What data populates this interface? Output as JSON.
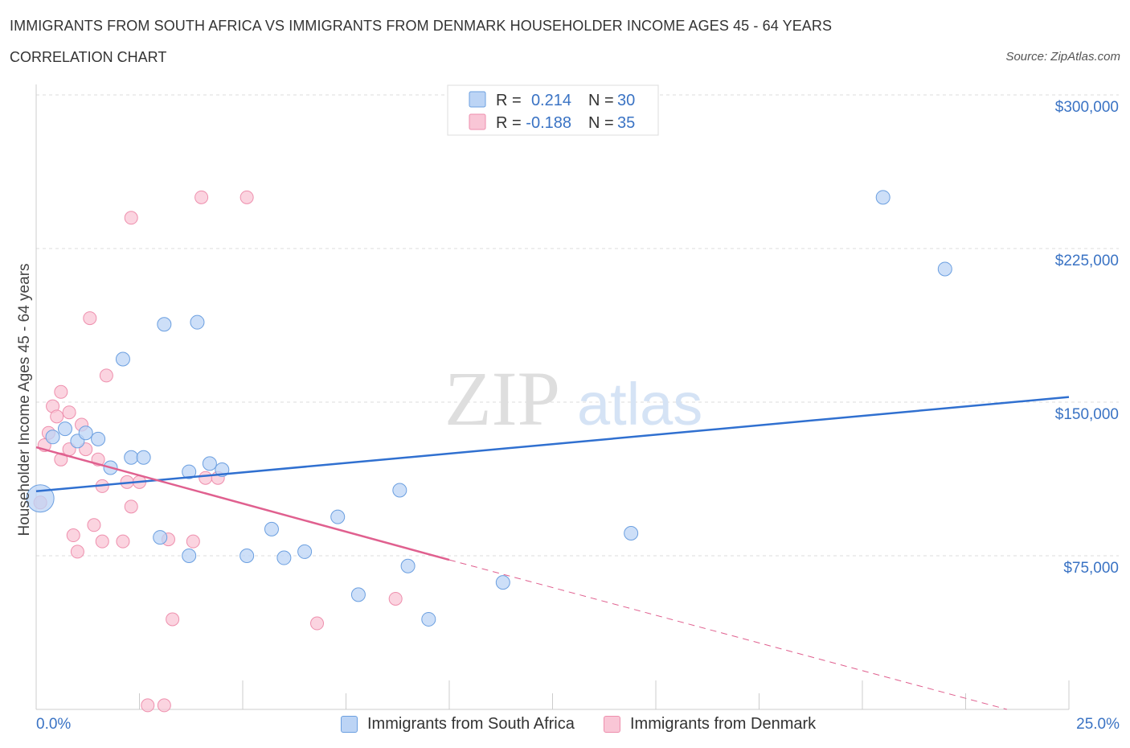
{
  "title": "IMMIGRANTS FROM SOUTH AFRICA VS IMMIGRANTS FROM DENMARK HOUSEHOLDER INCOME AGES 45 - 64 YEARS",
  "subtitle": "CORRELATION CHART",
  "source": "Source: ZipAtlas.com",
  "watermark": {
    "zip": "ZIP",
    "atlas": "atlas"
  },
  "legend_top": [
    {
      "r_label": "R =",
      "r_value": "0.214",
      "n_label": "N =",
      "n_value": "30"
    },
    {
      "r_label": "R =",
      "r_value": "-0.188",
      "n_label": "N =",
      "n_value": "35"
    }
  ],
  "legend_bottom": [
    {
      "label": "Immigrants from South Africa"
    },
    {
      "label": "Immigrants from Denmark"
    }
  ],
  "colors": {
    "blue_fill": "#bcd4f5",
    "blue_stroke": "#6b9fe0",
    "blue_line": "#3070d0",
    "pink_fill": "#f9c6d6",
    "pink_stroke": "#ee8fad",
    "pink_line": "#e0608f",
    "tick_text": "#3a73c4",
    "grid": "#dddddd"
  },
  "chart_data": {
    "type": "scatter",
    "title": "IMMIGRANTS FROM SOUTH AFRICA VS IMMIGRANTS FROM DENMARK HOUSEHOLDER INCOME AGES 45 - 64 YEARS",
    "xlabel": "",
    "ylabel": "Householder Income Ages 45 - 64 years",
    "xlim": [
      0,
      25
    ],
    "ylim": [
      0,
      300000
    ],
    "x_tick_labels": [
      "0.0%",
      "25.0%"
    ],
    "y_ticks": [
      75000,
      150000,
      225000,
      300000
    ],
    "y_tick_labels": [
      "$75,000",
      "$150,000",
      "$225,000",
      "$300,000"
    ],
    "grid": true,
    "series": [
      {
        "name": "Immigrants from South Africa",
        "r": 0.214,
        "n": 30,
        "trend": {
          "x0": 0,
          "y0": 106500,
          "x1": 25,
          "y1": 152500
        },
        "points": [
          [
            0.1,
            103000
          ],
          [
            0.4,
            133000
          ],
          [
            0.7,
            137000
          ],
          [
            1.0,
            131000
          ],
          [
            1.2,
            135000
          ],
          [
            1.5,
            132000
          ],
          [
            1.8,
            118000
          ],
          [
            2.1,
            171000
          ],
          [
            2.3,
            123000
          ],
          [
            2.6,
            123000
          ],
          [
            3.0,
            84000
          ],
          [
            3.1,
            188000
          ],
          [
            3.7,
            116000
          ],
          [
            3.7,
            75000
          ],
          [
            3.9,
            189000
          ],
          [
            4.2,
            120000
          ],
          [
            4.5,
            117000
          ],
          [
            5.1,
            75000
          ],
          [
            5.7,
            88000
          ],
          [
            6.0,
            74000
          ],
          [
            6.5,
            77000
          ],
          [
            7.3,
            94000
          ],
          [
            7.8,
            56000
          ],
          [
            8.8,
            107000
          ],
          [
            9.0,
            70000
          ],
          [
            9.5,
            44000
          ],
          [
            11.3,
            62000
          ],
          [
            14.4,
            86000
          ],
          [
            20.5,
            250000
          ],
          [
            22.0,
            215000
          ]
        ]
      },
      {
        "name": "Immigrants from Denmark",
        "r": -0.188,
        "n": 35,
        "trend": {
          "x0": 0,
          "y0": 128000,
          "x1": 10.0,
          "y1": 73000,
          "dashed_to_x": 23.5,
          "dashed_to_y": 0
        },
        "points": [
          [
            0.1,
            101000
          ],
          [
            0.2,
            129000
          ],
          [
            0.3,
            135000
          ],
          [
            0.4,
            148000
          ],
          [
            0.5,
            143000
          ],
          [
            0.6,
            155000
          ],
          [
            0.6,
            122000
          ],
          [
            0.8,
            145000
          ],
          [
            0.8,
            127000
          ],
          [
            0.9,
            85000
          ],
          [
            1.0,
            77000
          ],
          [
            1.1,
            139000
          ],
          [
            1.2,
            127000
          ],
          [
            1.3,
            191000
          ],
          [
            1.4,
            90000
          ],
          [
            1.5,
            122000
          ],
          [
            1.6,
            109000
          ],
          [
            1.6,
            82000
          ],
          [
            1.7,
            163000
          ],
          [
            2.1,
            82000
          ],
          [
            2.2,
            111000
          ],
          [
            2.3,
            99000
          ],
          [
            2.3,
            240000
          ],
          [
            2.5,
            111000
          ],
          [
            2.7,
            2000
          ],
          [
            3.1,
            2000
          ],
          [
            3.2,
            83000
          ],
          [
            3.3,
            44000
          ],
          [
            3.8,
            82000
          ],
          [
            4.0,
            250000
          ],
          [
            4.1,
            113000
          ],
          [
            4.4,
            113000
          ],
          [
            5.1,
            250000
          ],
          [
            6.8,
            42000
          ],
          [
            8.7,
            54000
          ]
        ]
      }
    ]
  }
}
